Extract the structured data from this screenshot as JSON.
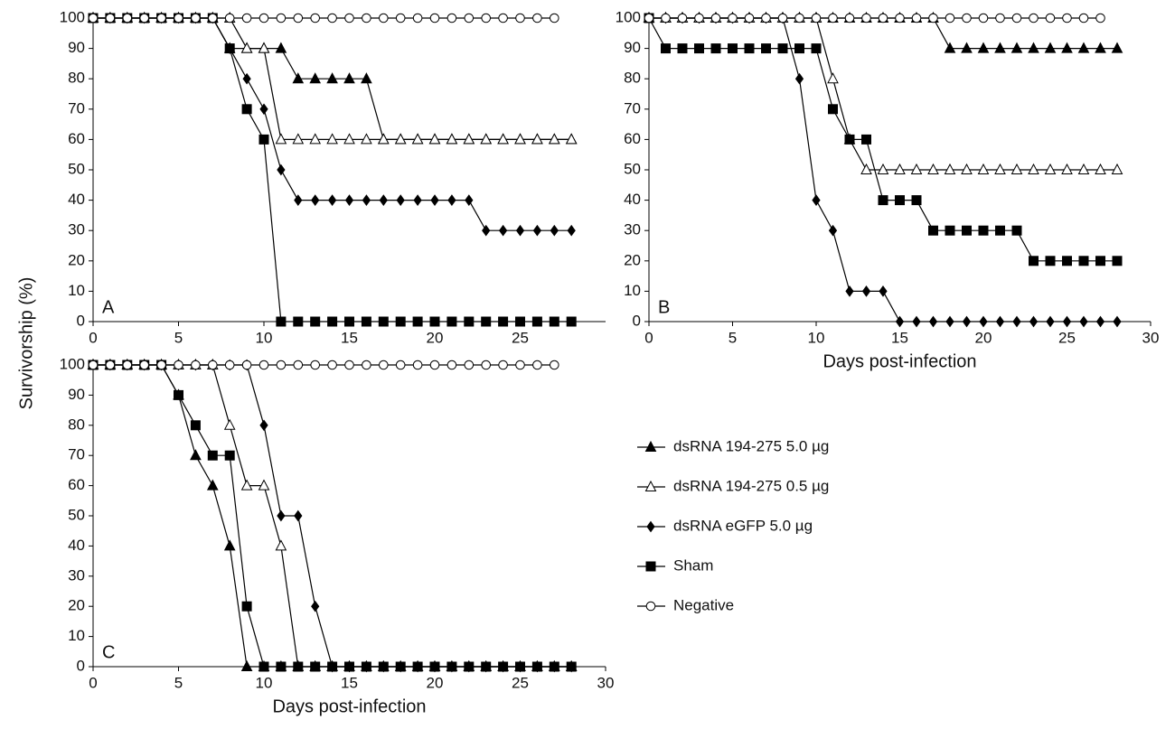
{
  "chart_data": [
    {
      "type": "line",
      "annotation": "A",
      "ylabel": "Survivorship (%)",
      "x": [
        0,
        1,
        2,
        3,
        4,
        5,
        6,
        7,
        8,
        9,
        10,
        11,
        12,
        13,
        14,
        15,
        16,
        17,
        18,
        19,
        20,
        21,
        22,
        23,
        24,
        25,
        26,
        27,
        28
      ],
      "xlim": [
        0,
        30
      ],
      "xticks": [
        0,
        5,
        10,
        15,
        20,
        25
      ],
      "ylim": [
        0,
        100
      ],
      "yticks": [
        0,
        10,
        20,
        30,
        40,
        50,
        60,
        70,
        80,
        90,
        100
      ],
      "series": [
        {
          "name": "dsRNA 194-275 5.0 µg",
          "marker": "triangle",
          "color": "#000000",
          "values": [
            100,
            100,
            100,
            100,
            100,
            100,
            100,
            100,
            90,
            90,
            90,
            90,
            80,
            80,
            80,
            80,
            80,
            60,
            60,
            60,
            60,
            60,
            60,
            60,
            60,
            60,
            60,
            60,
            60
          ]
        },
        {
          "name": "dsRNA 194-275 0.5 µg",
          "marker": "triangle-open",
          "color": "#000000",
          "values": [
            100,
            100,
            100,
            100,
            100,
            100,
            100,
            100,
            100,
            90,
            90,
            60,
            60,
            60,
            60,
            60,
            60,
            60,
            60,
            60,
            60,
            60,
            60,
            60,
            60,
            60,
            60,
            60,
            60
          ]
        },
        {
          "name": "dsRNA eGFP 5.0 µg",
          "marker": "diamond",
          "color": "#000000",
          "values": [
            100,
            100,
            100,
            100,
            100,
            100,
            100,
            100,
            90,
            80,
            70,
            50,
            40,
            40,
            40,
            40,
            40,
            40,
            40,
            40,
            40,
            40,
            40,
            30,
            30,
            30,
            30,
            30,
            30
          ]
        },
        {
          "name": "Sham",
          "marker": "square",
          "color": "#000000",
          "values": [
            100,
            100,
            100,
            100,
            100,
            100,
            100,
            100,
            90,
            70,
            60,
            0,
            0,
            0,
            0,
            0,
            0,
            0,
            0,
            0,
            0,
            0,
            0,
            0,
            0,
            0,
            0,
            0,
            0
          ]
        },
        {
          "name": "Negative",
          "marker": "circle-open",
          "color": "#000000",
          "values": [
            100,
            100,
            100,
            100,
            100,
            100,
            100,
            100,
            100,
            100,
            100,
            100,
            100,
            100,
            100,
            100,
            100,
            100,
            100,
            100,
            100,
            100,
            100,
            100,
            100,
            100,
            100,
            100,
            null
          ]
        }
      ]
    },
    {
      "type": "line",
      "annotation": "B",
      "xlabel": "Days post-infection",
      "x": [
        0,
        1,
        2,
        3,
        4,
        5,
        6,
        7,
        8,
        9,
        10,
        11,
        12,
        13,
        14,
        15,
        16,
        17,
        18,
        19,
        20,
        21,
        22,
        23,
        24,
        25,
        26,
        27,
        28
      ],
      "xlim": [
        0,
        30
      ],
      "xticks": [
        0,
        5,
        10,
        15,
        20,
        25,
        30
      ],
      "ylim": [
        0,
        100
      ],
      "yticks": [
        0,
        10,
        20,
        30,
        40,
        50,
        60,
        70,
        80,
        90,
        100
      ],
      "series": [
        {
          "marker": "triangle",
          "color": "#000000",
          "values": [
            100,
            100,
            100,
            100,
            100,
            100,
            100,
            100,
            100,
            100,
            100,
            100,
            100,
            100,
            100,
            100,
            100,
            100,
            90,
            90,
            90,
            90,
            90,
            90,
            90,
            90,
            90,
            90,
            90
          ]
        },
        {
          "marker": "triangle-open",
          "color": "#000000",
          "values": [
            100,
            100,
            100,
            100,
            100,
            100,
            100,
            100,
            100,
            100,
            100,
            80,
            60,
            50,
            50,
            50,
            50,
            50,
            50,
            50,
            50,
            50,
            50,
            50,
            50,
            50,
            50,
            50,
            50
          ]
        },
        {
          "marker": "diamond",
          "color": "#000000",
          "values": [
            100,
            100,
            100,
            100,
            100,
            100,
            100,
            100,
            100,
            80,
            40,
            30,
            10,
            10,
            10,
            0,
            0,
            0,
            0,
            0,
            0,
            0,
            0,
            0,
            0,
            0,
            0,
            0,
            0
          ]
        },
        {
          "marker": "square",
          "color": "#000000",
          "values": [
            100,
            90,
            90,
            90,
            90,
            90,
            90,
            90,
            90,
            90,
            90,
            70,
            60,
            60,
            40,
            40,
            40,
            30,
            30,
            30,
            30,
            30,
            30,
            20,
            20,
            20,
            20,
            20,
            20
          ]
        },
        {
          "marker": "circle-open",
          "color": "#000000",
          "values": [
            100,
            100,
            100,
            100,
            100,
            100,
            100,
            100,
            100,
            100,
            100,
            100,
            100,
            100,
            100,
            100,
            100,
            100,
            100,
            100,
            100,
            100,
            100,
            100,
            100,
            100,
            100,
            100,
            null
          ]
        }
      ]
    },
    {
      "type": "line",
      "annotation": "C",
      "xlabel": "Days post-infection",
      "x": [
        0,
        1,
        2,
        3,
        4,
        5,
        6,
        7,
        8,
        9,
        10,
        11,
        12,
        13,
        14,
        15,
        16,
        17,
        18,
        19,
        20,
        21,
        22,
        23,
        24,
        25,
        26,
        27,
        28
      ],
      "xlim": [
        0,
        30
      ],
      "xticks": [
        0,
        5,
        10,
        15,
        20,
        25,
        30
      ],
      "ylim": [
        0,
        100
      ],
      "yticks": [
        0,
        10,
        20,
        30,
        40,
        50,
        60,
        70,
        80,
        90,
        100
      ],
      "series": [
        {
          "marker": "triangle",
          "color": "#000000",
          "values": [
            100,
            100,
            100,
            100,
            100,
            90,
            70,
            60,
            40,
            0,
            0,
            0,
            0,
            0,
            0,
            0,
            0,
            0,
            0,
            0,
            0,
            0,
            0,
            0,
            0,
            0,
            0,
            0,
            0
          ]
        },
        {
          "marker": "triangle-open",
          "color": "#000000",
          "values": [
            100,
            100,
            100,
            100,
            100,
            100,
            100,
            100,
            80,
            60,
            60,
            40,
            0,
            0,
            0,
            0,
            0,
            0,
            0,
            0,
            0,
            0,
            0,
            0,
            0,
            0,
            0,
            0,
            0
          ]
        },
        {
          "marker": "diamond",
          "color": "#000000",
          "values": [
            100,
            100,
            100,
            100,
            100,
            100,
            100,
            100,
            100,
            100,
            80,
            50,
            50,
            20,
            0,
            0,
            0,
            0,
            0,
            0,
            0,
            0,
            0,
            0,
            0,
            0,
            0,
            0,
            0
          ]
        },
        {
          "marker": "square",
          "color": "#000000",
          "values": [
            100,
            100,
            100,
            100,
            100,
            90,
            80,
            70,
            70,
            20,
            0,
            0,
            0,
            0,
            0,
            0,
            0,
            0,
            0,
            0,
            0,
            0,
            0,
            0,
            0,
            0,
            0,
            0,
            0
          ]
        },
        {
          "marker": "circle-open",
          "color": "#000000",
          "values": [
            100,
            100,
            100,
            100,
            100,
            100,
            100,
            100,
            100,
            100,
            100,
            100,
            100,
            100,
            100,
            100,
            100,
            100,
            100,
            100,
            100,
            100,
            100,
            100,
            100,
            100,
            100,
            100,
            null
          ]
        }
      ]
    }
  ]
}
